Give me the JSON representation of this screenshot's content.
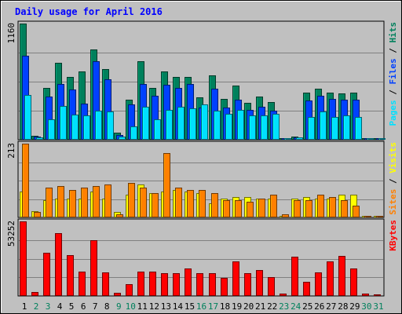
{
  "chart_data": {
    "type": "bar",
    "title": "Daily usage for April 2016",
    "days": [
      "1",
      "2",
      "3",
      "4",
      "5",
      "6",
      "7",
      "8",
      "9",
      "10",
      "11",
      "12",
      "13",
      "14",
      "15",
      "16",
      "17",
      "18",
      "19",
      "20",
      "21",
      "22",
      "23",
      "24",
      "25",
      "26",
      "27",
      "28",
      "29",
      "30",
      "31"
    ],
    "weekend_days": [
      "2",
      "3",
      "9",
      "10",
      "16",
      "17",
      "23",
      "24",
      "30",
      "31"
    ],
    "panels": [
      {
        "id": "pages-files-hits",
        "ymax_label": "1160",
        "ymax": 1160,
        "legend": [
          {
            "name": "Pages",
            "color": "#00e0ff"
          },
          {
            "sep": " / "
          },
          {
            "name": "Files",
            "color": "#0040ff"
          },
          {
            "sep": " / "
          },
          {
            "name": "Hits",
            "color": "#00805c"
          }
        ],
        "series": [
          {
            "name": "Hits",
            "color": "#00805c",
            "values": [
              1160,
              40,
              520,
              770,
              630,
              680,
              900,
              705,
              70,
              400,
              780,
              520,
              680,
              630,
              630,
              420,
              640,
              410,
              540,
              370,
              430,
              380,
              0,
              30,
              470,
              510,
              470,
              460,
              470,
              0,
              0
            ]
          },
          {
            "name": "Files",
            "color": "#0040ff",
            "values": [
              840,
              30,
              430,
              560,
              500,
              360,
              780,
              600,
              50,
              350,
              560,
              440,
              550,
              520,
              560,
              320,
              510,
              320,
              400,
              300,
              330,
              290,
              0,
              20,
              390,
              440,
              410,
              400,
              400,
              0,
              0
            ]
          },
          {
            "name": "Pages",
            "color": "#00e0ff",
            "values": [
              450,
              20,
              200,
              340,
              250,
              240,
              290,
              280,
              30,
              130,
              330,
              200,
              300,
              330,
              310,
              350,
              290,
              260,
              300,
              240,
              240,
              260,
              0,
              20,
              230,
              280,
              230,
              240,
              230,
              0,
              10
            ]
          }
        ]
      },
      {
        "id": "visits-sites",
        "ymax_label": "213",
        "ymax": 213,
        "legend": [
          {
            "name": "Sites",
            "color": "#ff8000"
          },
          {
            "sep": " / "
          },
          {
            "name": "Visits",
            "color": "#ffff00"
          }
        ],
        "series": [
          {
            "name": "Visits",
            "color": "#ffff00",
            "values": [
              75,
              18,
              50,
              55,
              55,
              55,
              75,
              55,
              15,
              65,
              95,
              70,
              75,
              80,
              75,
              70,
              40,
              55,
              60,
              60,
              55,
              55,
              5,
              55,
              60,
              55,
              55,
              65,
              65,
              0,
              0
            ]
          },
          {
            "name": "Sites",
            "color": "#ff8000",
            "values": [
              213,
              15,
              85,
              90,
              80,
              85,
              90,
              95,
              10,
              100,
              85,
              70,
              185,
              85,
              80,
              80,
              70,
              50,
              50,
              45,
              55,
              65,
              8,
              50,
              50,
              65,
              60,
              50,
              35,
              5,
              5
            ]
          }
        ]
      },
      {
        "id": "kbytes",
        "ymax_label": "53252",
        "ymax": 53252,
        "legend": [
          {
            "name": "KBytes",
            "color": "#ff0000"
          }
        ],
        "series": [
          {
            "name": "KBytes",
            "color": "#ff0000",
            "values": [
              53252,
              3000,
              31000,
              45000,
              29000,
              17500,
              40000,
              17000,
              2500,
              8500,
              17500,
              17500,
              16000,
              16000,
              19500,
              16500,
              16000,
              13000,
              24500,
              16500,
              18500,
              13500,
              1500,
              28000,
              10000,
              17000,
              24500,
              28500,
              19500,
              1500,
              0
            ]
          }
        ]
      }
    ]
  }
}
